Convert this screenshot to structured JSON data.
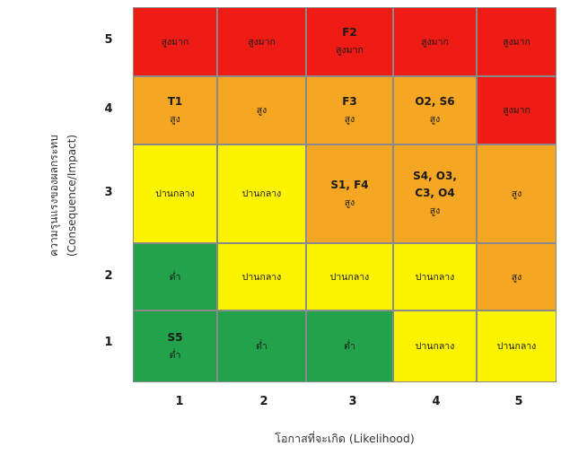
{
  "y_axis": {
    "title_line1": "ความรุนแรงของผลกระทบ",
    "title_line2": "(Consequence/Impact)",
    "ticks": [
      "5",
      "4",
      "3",
      "2",
      "1"
    ]
  },
  "x_axis": {
    "title": "โอกาสที่จะเกิด (Likelihood)",
    "ticks": [
      "1",
      "2",
      "3",
      "4",
      "5"
    ]
  },
  "colors": {
    "very_high": "#ee1c14",
    "high": "#f5a622",
    "medium": "#fbf300",
    "low": "#22a24a"
  },
  "levels": {
    "very_high": "สูงมาก",
    "high": "สูง",
    "medium": "ปานกลาง",
    "low": "ต่ำ"
  },
  "matrix": [
    [
      {
        "level": "very_high",
        "label": "สูงมาก",
        "codes": ""
      },
      {
        "level": "very_high",
        "label": "สูงมาก",
        "codes": ""
      },
      {
        "level": "very_high",
        "label": "สูงมาก",
        "codes": "F2"
      },
      {
        "level": "very_high",
        "label": "สูงมาก",
        "codes": ""
      },
      {
        "level": "very_high",
        "label": "สูงมาก",
        "codes": ""
      }
    ],
    [
      {
        "level": "high",
        "label": "สูง",
        "codes": "T1"
      },
      {
        "level": "high",
        "label": "สูง",
        "codes": ""
      },
      {
        "level": "high",
        "label": "สูง",
        "codes": "F3"
      },
      {
        "level": "high",
        "label": "สูง",
        "codes": "O2, S6"
      },
      {
        "level": "very_high",
        "label": "สูงมาก",
        "codes": ""
      }
    ],
    [
      {
        "level": "medium",
        "label": "ปานกลาง",
        "codes": ""
      },
      {
        "level": "medium",
        "label": "ปานกลาง",
        "codes": ""
      },
      {
        "level": "high",
        "label": "สูง",
        "codes": "S1, F4"
      },
      {
        "level": "high",
        "label": "สูง",
        "codes": "S4, O3,\nC3, O4"
      },
      {
        "level": "high",
        "label": "สูง",
        "codes": ""
      }
    ],
    [
      {
        "level": "low",
        "label": "ต่ำ",
        "codes": ""
      },
      {
        "level": "medium",
        "label": "ปานกลาง",
        "codes": ""
      },
      {
        "level": "medium",
        "label": "ปานกลาง",
        "codes": ""
      },
      {
        "level": "medium",
        "label": "ปานกลาง",
        "codes": ""
      },
      {
        "level": "high",
        "label": "สูง",
        "codes": ""
      }
    ],
    [
      {
        "level": "low",
        "label": "ต่ำ",
        "codes": "S5"
      },
      {
        "level": "low",
        "label": "ต่ำ",
        "codes": ""
      },
      {
        "level": "low",
        "label": "ต่ำ",
        "codes": ""
      },
      {
        "level": "medium",
        "label": "ปานกลาง",
        "codes": ""
      },
      {
        "level": "medium",
        "label": "ปานกลาง",
        "codes": ""
      }
    ]
  ]
}
